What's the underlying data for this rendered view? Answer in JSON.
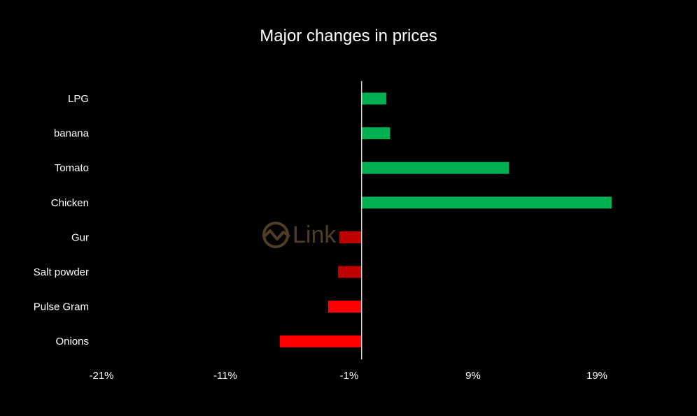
{
  "chart_data": {
    "type": "bar",
    "orientation": "horizontal",
    "title": "Major changes in prices",
    "categories": [
      "LPG",
      "banana",
      "Tomato",
      "Chicken",
      "Gur",
      "Salt powder",
      "Pulse Gram",
      "Onions"
    ],
    "values": [
      2.0,
      2.3,
      11.9,
      20.2,
      -1.8,
      -1.9,
      -2.7,
      -6.6
    ],
    "bar_colors": [
      "#00b050",
      "#00b050",
      "#00b050",
      "#00b050",
      "#c00000",
      "#c00000",
      "#ff0000",
      "#ff0000"
    ],
    "xlim": [
      -21,
      29
    ],
    "xticks": [
      -21,
      -11,
      -1,
      9,
      19
    ],
    "xtick_labels": [
      "-21%",
      "-11%",
      "-1%",
      "9%",
      "19%"
    ],
    "xlabel": "",
    "ylabel": "",
    "grid": false,
    "legend": "none"
  },
  "watermark": {
    "text": "Link",
    "icon": "clink-logo-icon",
    "color": "#6b5330"
  },
  "colors": {
    "background": "#000000",
    "text": "#ffffff",
    "axis": "#d9d9d9",
    "increase": "#00b050",
    "decrease_dark": "#c00000",
    "decrease": "#ff0000"
  }
}
